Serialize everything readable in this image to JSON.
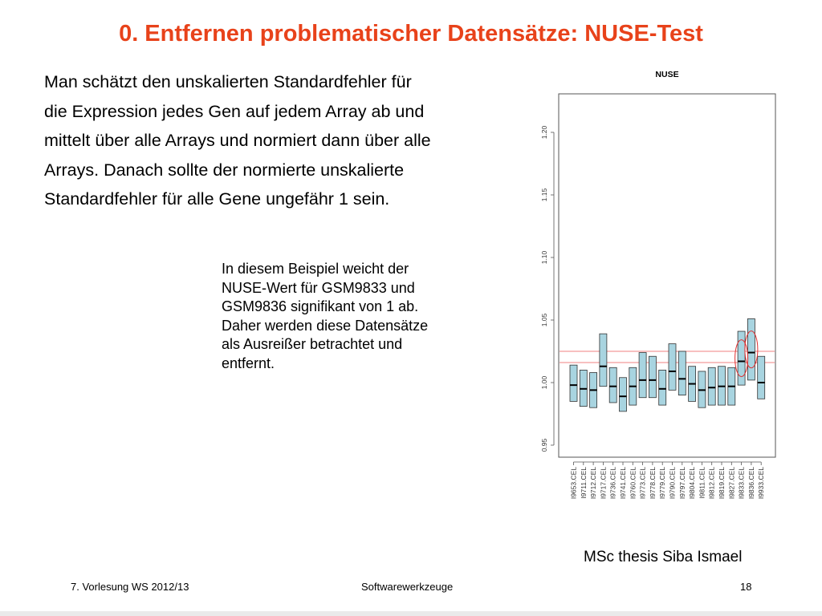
{
  "slide": {
    "title": "0. Entfernen problematischer Datensätze: NUSE-Test",
    "intro_lines": [
      "Man schätzt den unskalierten Standardfehler für",
      "die Expression jedes Gen auf jedem Array ab und",
      "mittelt über alle Arrays und normiert dann über alle",
      "Arrays. Danach sollte der normierte unskalierte",
      "Standardfehler für alle Gene ungefähr 1 sein."
    ],
    "note_lines": [
      "In diesem Beispiel weicht der",
      "NUSE-Wert für GSM9833 und",
      "GSM9836 signifikant von 1 ab.",
      "Daher werden diese Datensätze",
      "als Ausreißer betrachtet und",
      "entfernt."
    ],
    "caption": "MSc thesis Siba Ismael"
  },
  "footer": {
    "left": "7. Vorlesung WS 2012/13",
    "center": "Softwarewerkzeuge",
    "page_number": "18"
  },
  "chart_data": {
    "type": "boxplot",
    "title": "NUSE",
    "xlabel": "",
    "ylabel": "",
    "ylim": [
      0.94,
      1.24
    ],
    "yticks": [
      0.95,
      1.0,
      1.05,
      1.1,
      1.15,
      1.2
    ],
    "ytick_labels": [
      "0.95",
      "1.00",
      "1.05",
      "1.10",
      "1.15",
      "1.20"
    ],
    "grid": false,
    "box_color": "#a8d4e0",
    "reference_line_color": "#f08080",
    "reference_lines": [
      1.016,
      1.025
    ],
    "highlight_circle_color": "#e03030",
    "highlighted": [
      "I9833.CEL",
      "I9836.CEL"
    ],
    "categories": [
      "I9653.CEL",
      "I9711.CEL",
      "I9712.CEL",
      "I9717.CEL",
      "I9736.CEL",
      "I9741.CEL",
      "I9760.CEL",
      "I9773.CEL",
      "I9778.CEL",
      "I9779.CEL",
      "I9790.CEL",
      "I9797.CEL",
      "I9804.CEL",
      "I9811.CEL",
      "I9812.CEL",
      "I9819.CEL",
      "I9827.CEL",
      "I9833.CEL",
      "I9836.CEL",
      "I9933.CEL"
    ],
    "q1": [
      0.985,
      0.981,
      0.98,
      0.997,
      0.984,
      0.977,
      0.982,
      0.988,
      0.988,
      0.982,
      0.994,
      0.99,
      0.985,
      0.98,
      0.982,
      0.982,
      0.982,
      0.998,
      1.002,
      0.987
    ],
    "median": [
      0.998,
      0.995,
      0.994,
      1.013,
      0.997,
      0.989,
      0.997,
      1.002,
      1.002,
      0.995,
      1.009,
      1.003,
      0.999,
      0.994,
      0.996,
      0.997,
      0.997,
      1.017,
      1.024,
      1.0
    ],
    "q3": [
      1.014,
      1.01,
      1.008,
      1.039,
      1.012,
      1.004,
      1.012,
      1.024,
      1.021,
      1.01,
      1.031,
      1.025,
      1.013,
      1.009,
      1.012,
      1.013,
      1.012,
      1.041,
      1.051,
      1.021
    ]
  }
}
